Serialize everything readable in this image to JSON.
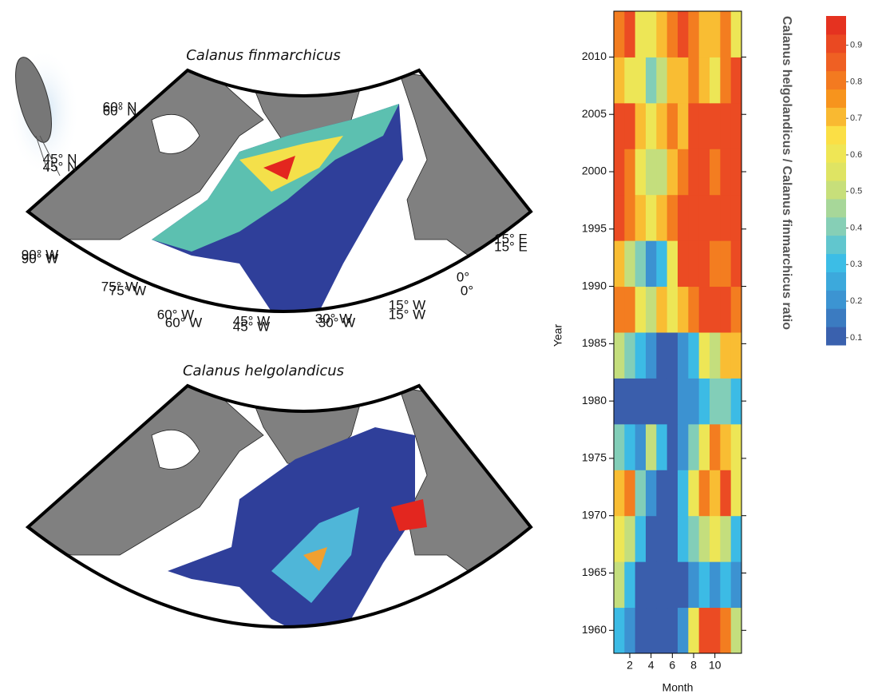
{
  "maps": [
    {
      "title": "Calanus finmarchicus",
      "labels": [
        "60° N",
        "45° N",
        "90° W",
        "75° W",
        "60° W",
        "45° W",
        "30° W",
        "15° W",
        "0°",
        "15° E"
      ]
    },
    {
      "title": "Calanus helgolandicus",
      "labels": [
        "60° N",
        "45° N",
        "90° W",
        "75° W",
        "60° W",
        "45° W",
        "30° W",
        "15° W",
        "0°",
        "15° E"
      ]
    }
  ],
  "chart_data": {
    "type": "heatmap",
    "xlabel": "Month",
    "ylabel": "Year",
    "colorbar_label": "Calanus helgolandicus / Calanus finmarchicus ratio",
    "x": [
      1,
      2,
      3,
      4,
      5,
      6,
      7,
      8,
      9,
      10,
      11,
      12
    ],
    "y": [
      1960,
      1964,
      1968,
      1972,
      1976,
      1980,
      1984,
      1988,
      1992,
      1996,
      2000,
      2004,
      2008,
      2012
    ],
    "xlim": [
      0.5,
      12.5
    ],
    "xticks": [
      2,
      4,
      6,
      8,
      10
    ],
    "ylim": [
      1958,
      2014
    ],
    "yticks": [
      1960,
      1965,
      1970,
      1975,
      1980,
      1985,
      1990,
      1995,
      2000,
      2005,
      2010
    ],
    "zlim": [
      0.08,
      0.98
    ],
    "zticks": [
      0.1,
      0.2,
      0.3,
      0.4,
      0.5,
      0.6,
      0.7,
      0.8,
      0.9
    ],
    "colorscale": [
      "#3a54a4",
      "#3c8fd0",
      "#3cbde6",
      "#8fd1b0",
      "#d7e36a",
      "#fbe84a",
      "#f7941d",
      "#ee5a24",
      "#e3261f"
    ],
    "z": [
      [
        0.3,
        0.2,
        0.1,
        0.1,
        0.1,
        0.1,
        0.2,
        0.6,
        0.9,
        0.9,
        0.8,
        0.5
      ],
      [
        0.5,
        0.3,
        0.1,
        0.1,
        0.1,
        0.1,
        0.1,
        0.2,
        0.3,
        0.2,
        0.3,
        0.2
      ],
      [
        0.6,
        0.5,
        0.3,
        0.1,
        0.1,
        0.1,
        0.3,
        0.4,
        0.5,
        0.6,
        0.5,
        0.3
      ],
      [
        0.7,
        0.8,
        0.4,
        0.2,
        0.1,
        0.1,
        0.3,
        0.6,
        0.8,
        0.7,
        0.9,
        0.6
      ],
      [
        0.4,
        0.3,
        0.2,
        0.5,
        0.3,
        0.1,
        0.2,
        0.4,
        0.6,
        0.8,
        0.7,
        0.6
      ],
      [
        0.1,
        0.1,
        0.1,
        0.1,
        0.1,
        0.1,
        0.2,
        0.2,
        0.3,
        0.4,
        0.4,
        0.3
      ],
      [
        0.5,
        0.4,
        0.3,
        0.2,
        0.1,
        0.1,
        0.2,
        0.3,
        0.6,
        0.5,
        0.7,
        0.7
      ],
      [
        0.8,
        0.8,
        0.6,
        0.5,
        0.7,
        0.6,
        0.7,
        0.8,
        0.9,
        0.9,
        0.9,
        0.8
      ],
      [
        0.7,
        0.5,
        0.4,
        0.2,
        0.3,
        0.6,
        0.9,
        0.9,
        0.9,
        0.8,
        0.8,
        0.9
      ],
      [
        0.9,
        0.8,
        0.7,
        0.6,
        0.7,
        0.8,
        0.9,
        0.9,
        0.9,
        0.9,
        0.9,
        0.9
      ],
      [
        0.9,
        0.8,
        0.6,
        0.5,
        0.5,
        0.7,
        0.8,
        0.9,
        0.9,
        0.8,
        0.9,
        0.9
      ],
      [
        0.9,
        0.9,
        0.7,
        0.6,
        0.7,
        0.8,
        0.7,
        0.9,
        0.9,
        0.9,
        0.9,
        0.9
      ],
      [
        0.7,
        0.6,
        0.6,
        0.4,
        0.5,
        0.7,
        0.7,
        0.8,
        0.7,
        0.6,
        0.8,
        0.9
      ],
      [
        0.8,
        0.9,
        0.6,
        0.6,
        0.7,
        0.8,
        0.9,
        0.8,
        0.7,
        0.7,
        0.8,
        0.6
      ]
    ]
  }
}
